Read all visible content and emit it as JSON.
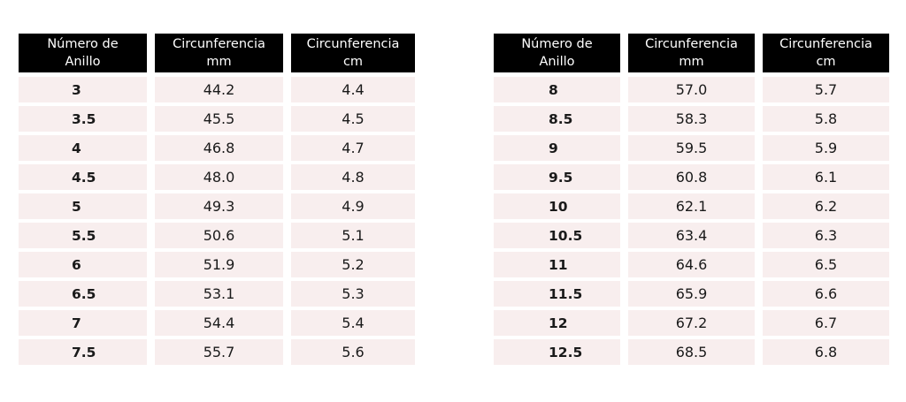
{
  "tables": [
    {
      "headers": [
        "Número de\nAnillo",
        "Circunferencia\nmm",
        "Circunferencia\ncm"
      ],
      "rows": [
        [
          "3",
          "44.2",
          "4.4"
        ],
        [
          "3.5",
          "45.5",
          "4.5"
        ],
        [
          "4",
          "46.8",
          "4.7"
        ],
        [
          "4.5",
          "48.0",
          "4.8"
        ],
        [
          "5",
          "49.3",
          "4.9"
        ],
        [
          "5.5",
          "50.6",
          "5.1"
        ],
        [
          "6",
          "51.9",
          "5.2"
        ],
        [
          "6.5",
          "53.1",
          "5.3"
        ],
        [
          "7",
          "54.4",
          "5.4"
        ],
        [
          "7.5",
          "55.7",
          "5.6"
        ]
      ]
    },
    {
      "headers": [
        "Número de\nAnillo",
        "Circunferencia\nmm",
        "Circunferencia\ncm"
      ],
      "rows": [
        [
          "8",
          "57.0",
          "5.7"
        ],
        [
          "8.5",
          "58.3",
          "5.8"
        ],
        [
          "9",
          "59.5",
          "5.9"
        ],
        [
          "9.5",
          "60.8",
          "6.1"
        ],
        [
          "10",
          "62.1",
          "6.2"
        ],
        [
          "10.5",
          "63.4",
          "6.3"
        ],
        [
          "11",
          "64.6",
          "6.5"
        ],
        [
          "11.5",
          "65.9",
          "6.6"
        ],
        [
          "12",
          "67.2",
          "6.7"
        ],
        [
          "12.5",
          "68.5",
          "6.8"
        ]
      ]
    }
  ],
  "colors": {
    "header_bg": "#000000",
    "header_text": "#ffffff",
    "cell_bg": "#f8eeee",
    "cell_text": "#1a1a1a"
  }
}
